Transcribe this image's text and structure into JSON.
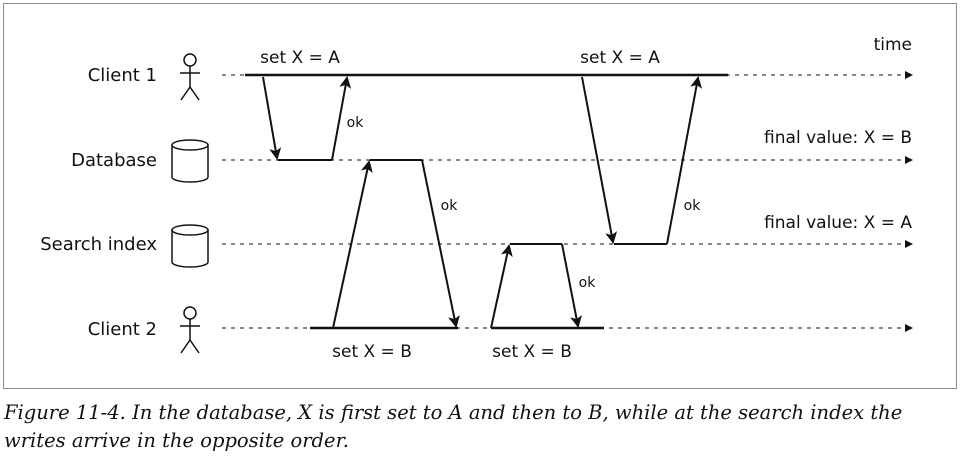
{
  "lanes": {
    "client1": "Client 1",
    "database": "Database",
    "search_index": "Search index",
    "client2": "Client 2"
  },
  "time_label": "time",
  "messages": {
    "c1_first": "set X = A",
    "c1_second": "set X = A",
    "c2_first": "set X = B",
    "c2_second": "set X = B"
  },
  "acks": {
    "ok1": "ok",
    "ok2": "ok",
    "ok3": "ok",
    "ok4": "ok"
  },
  "final_values": {
    "database": "final value: X = B",
    "search_index": "final value: X = A"
  },
  "icons": {
    "client1": "person-icon",
    "database": "database-cylinder-icon",
    "search_index": "database-cylinder-icon",
    "client2": "person-icon"
  },
  "caption": "Figure 11-4. In the database, X is first set to A and then to B, while at the search index the writes arrive in the opposite order."
}
